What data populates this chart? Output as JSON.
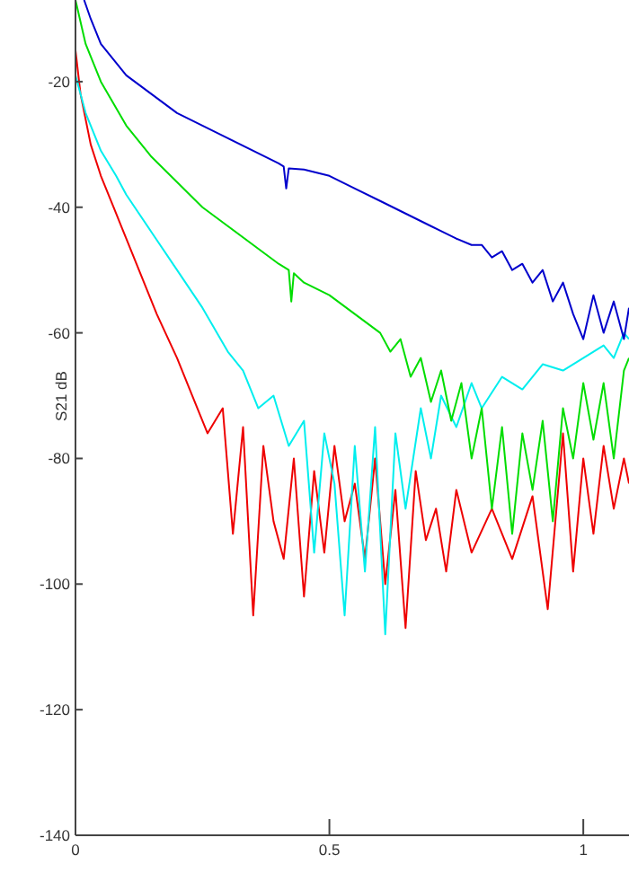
{
  "chart_data": {
    "type": "line",
    "ylabel": "S21 dB",
    "xlim": [
      0,
      1.09
    ],
    "ylim": [
      -140,
      -7
    ],
    "xticks": [
      0,
      0.5,
      1
    ],
    "yticks": [
      -20,
      -40,
      -60,
      -80,
      -100,
      -120,
      -140
    ],
    "grid": false,
    "series": [
      {
        "color": "#ee0000",
        "x": [
          0,
          0.01,
          0.03,
          0.05,
          0.08,
          0.1,
          0.13,
          0.16,
          0.2,
          0.23,
          0.26,
          0.29,
          0.31,
          0.33,
          0.35,
          0.37,
          0.39,
          0.41,
          0.43,
          0.45,
          0.47,
          0.49,
          0.51,
          0.53,
          0.55,
          0.57,
          0.59,
          0.61,
          0.63,
          0.65,
          0.67,
          0.69,
          0.71,
          0.73,
          0.75,
          0.78,
          0.82,
          0.86,
          0.9,
          0.93,
          0.96,
          0.98,
          1.0,
          1.02,
          1.04,
          1.06,
          1.08,
          1.09
        ],
        "values": [
          -15,
          -22,
          -30,
          -35,
          -41,
          -45,
          -51,
          -57,
          -64,
          -70,
          -76,
          -72,
          -92,
          -75,
          -105,
          -78,
          -90,
          -96,
          -80,
          -102,
          -82,
          -95,
          -78,
          -90,
          -84,
          -96,
          -80,
          -100,
          -85,
          -107,
          -82,
          -93,
          -88,
          -98,
          -85,
          -95,
          -88,
          -96,
          -86,
          -104,
          -76,
          -98,
          -80,
          -92,
          -78,
          -88,
          -80,
          -84
        ]
      },
      {
        "color": "#00eeee",
        "x": [
          0,
          0.02,
          0.05,
          0.08,
          0.1,
          0.15,
          0.2,
          0.25,
          0.3,
          0.33,
          0.36,
          0.39,
          0.42,
          0.45,
          0.47,
          0.49,
          0.51,
          0.53,
          0.55,
          0.57,
          0.59,
          0.61,
          0.63,
          0.65,
          0.68,
          0.7,
          0.72,
          0.75,
          0.78,
          0.8,
          0.84,
          0.88,
          0.92,
          0.96,
          1.0,
          1.04,
          1.06,
          1.08,
          1.09
        ],
        "values": [
          -19,
          -25,
          -31,
          -35,
          -38,
          -44,
          -50,
          -56,
          -63,
          -66,
          -72,
          -70,
          -78,
          -74,
          -95,
          -76,
          -84,
          -105,
          -78,
          -98,
          -75,
          -108,
          -76,
          -88,
          -72,
          -80,
          -70,
          -75,
          -68,
          -72,
          -67,
          -69,
          -65,
          -66,
          -64,
          -62,
          -64,
          -60,
          -61
        ]
      },
      {
        "color": "#00dd00",
        "x": [
          0,
          0.02,
          0.05,
          0.1,
          0.15,
          0.2,
          0.25,
          0.3,
          0.35,
          0.4,
          0.42,
          0.425,
          0.43,
          0.45,
          0.5,
          0.55,
          0.6,
          0.62,
          0.64,
          0.66,
          0.68,
          0.7,
          0.72,
          0.74,
          0.76,
          0.78,
          0.8,
          0.82,
          0.84,
          0.86,
          0.88,
          0.9,
          0.92,
          0.94,
          0.96,
          0.98,
          1.0,
          1.02,
          1.04,
          1.06,
          1.08,
          1.09
        ],
        "values": [
          -7,
          -14,
          -20,
          -27,
          -32,
          -36,
          -40,
          -43,
          -46,
          -49,
          -50,
          -55,
          -50.5,
          -52,
          -54,
          -57,
          -60,
          -63,
          -61,
          -67,
          -64,
          -71,
          -66,
          -74,
          -68,
          -80,
          -72,
          -88,
          -75,
          -92,
          -76,
          -85,
          -74,
          -90,
          -72,
          -80,
          -68,
          -77,
          -68,
          -80,
          -66,
          -64
        ]
      },
      {
        "color": "#0000cc",
        "x": [
          0.017,
          0.03,
          0.05,
          0.08,
          0.1,
          0.15,
          0.2,
          0.25,
          0.3,
          0.35,
          0.4,
          0.41,
          0.415,
          0.42,
          0.45,
          0.5,
          0.55,
          0.6,
          0.65,
          0.7,
          0.75,
          0.78,
          0.8,
          0.82,
          0.84,
          0.86,
          0.88,
          0.9,
          0.92,
          0.94,
          0.96,
          0.98,
          1.0,
          1.02,
          1.04,
          1.06,
          1.08,
          1.09
        ],
        "values": [
          -7,
          -10,
          -14,
          -17,
          -19,
          -22,
          -25,
          -27,
          -29,
          -31,
          -33,
          -33.5,
          -37,
          -33.8,
          -34,
          -35,
          -37,
          -39,
          -41,
          -43,
          -45,
          -46,
          -46,
          -48,
          -47,
          -50,
          -49,
          -52,
          -50,
          -55,
          -52,
          -57,
          -61,
          -54,
          -60,
          -55,
          -61,
          -56
        ]
      }
    ]
  }
}
